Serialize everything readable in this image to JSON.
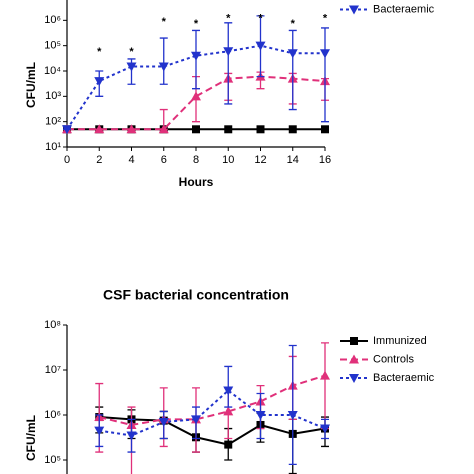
{
  "chart_data": [
    {
      "type": "line",
      "log_y": true,
      "xlabel": "Hours",
      "ylabel": "CFU/mL",
      "legend": "upper right",
      "x": [
        0,
        2,
        4,
        6,
        8,
        10,
        12,
        14,
        16
      ],
      "xlim": [
        0,
        16
      ],
      "xticks": [
        0,
        2,
        4,
        6,
        8,
        10,
        12,
        14,
        16
      ],
      "ylim": [
        10,
        10000000
      ],
      "yticks": [
        {
          "value": 10,
          "label": "10¹"
        },
        {
          "value": 100,
          "label": "10²"
        },
        {
          "value": 1000,
          "label": "10³"
        },
        {
          "value": 10000,
          "label": "10⁴"
        },
        {
          "value": 100000,
          "label": "10⁵"
        },
        {
          "value": 1000000,
          "label": "10⁶"
        }
      ],
      "series": [
        {
          "name": "Immunized",
          "color": "#000000",
          "marker": "square",
          "dash": "none",
          "legend": false,
          "values": [
            50,
            50,
            50,
            50,
            50,
            50,
            50,
            50,
            50
          ]
        },
        {
          "name": "Controls",
          "color": "#e0307a",
          "marker": "triangle-up",
          "dash": "7 4",
          "values": [
            50,
            50,
            50,
            50,
            1000,
            5000,
            6000,
            5000,
            4000
          ],
          "lower": [
            50,
            50,
            50,
            50,
            100,
            700,
            2000,
            500,
            700
          ],
          "upper": [
            50,
            50,
            50,
            300,
            6000,
            8000,
            9000,
            8000,
            5000
          ]
        },
        {
          "name": "Bacteraemic",
          "color": "#2233cc",
          "marker": "triangle-down",
          "dash": "3 3",
          "values": [
            50,
            4000,
            15000,
            15000,
            40000,
            60000,
            100000,
            50000,
            50000
          ],
          "lower": [
            50,
            1000,
            3000,
            3000,
            2000,
            500,
            6000,
            300,
            100
          ],
          "upper": [
            50,
            10000,
            30000,
            200000,
            400000,
            800000,
            1500000,
            400000,
            500000
          ]
        }
      ],
      "annotations": [
        {
          "text": "*",
          "x": 2,
          "y": 80000
        },
        {
          "text": "*",
          "x": 4,
          "y": 80000
        },
        {
          "text": "*",
          "x": 6,
          "y": 1200000
        },
        {
          "text": "*",
          "x": 8,
          "y": 1000000
        },
        {
          "text": "*",
          "x": 10,
          "y": 1700000
        },
        {
          "text": "*",
          "x": 12,
          "y": 1700000
        },
        {
          "text": "*",
          "x": 14,
          "y": 1000000
        },
        {
          "text": "*",
          "x": 16,
          "y": 1700000
        }
      ]
    },
    {
      "type": "line",
      "log_y": true,
      "title": "CSF bacterial concentration",
      "ylabel": "CFU/mL",
      "legend": "upper right",
      "x": [
        2,
        4,
        6,
        8,
        10,
        12,
        14,
        16
      ],
      "xlim": [
        0,
        16
      ],
      "ylim": [
        10000,
        100000000
      ],
      "yticks": [
        {
          "value": 100000,
          "label": "10⁵"
        },
        {
          "value": 1000000,
          "label": "10⁶"
        },
        {
          "value": 10000000,
          "label": "10⁷"
        },
        {
          "value": 100000000,
          "label": "10⁸"
        }
      ],
      "series": [
        {
          "name": "Immunized",
          "color": "#000000",
          "marker": "square",
          "dash": "none",
          "values": [
            900000,
            800000,
            750000,
            320000,
            220000,
            600000,
            380000,
            500000
          ],
          "lower": [
            400000,
            300000,
            300000,
            150000,
            100000,
            250000,
            50000,
            200000
          ],
          "upper": [
            1500000,
            1300000,
            1200000,
            700000,
            500000,
            1100000,
            800000,
            900000
          ]
        },
        {
          "name": "Controls",
          "color": "#e0307a",
          "marker": "triangle-up",
          "dash": "7 4",
          "values": [
            900000,
            600000,
            800000,
            800000,
            1200000,
            2000000,
            4500000,
            7500000
          ],
          "lower": [
            150000,
            40000,
            200000,
            150000,
            300000,
            500000,
            800000,
            500000
          ],
          "upper": [
            5000000,
            1500000,
            4000000,
            4000000,
            4000000,
            4500000,
            20000000,
            40000000
          ]
        },
        {
          "name": "Bacteraemic",
          "color": "#2233cc",
          "marker": "triangle-down",
          "dash": "3 3",
          "values": [
            450000,
            350000,
            700000,
            800000,
            3500000,
            1000000,
            1000000,
            500000
          ],
          "lower": [
            200000,
            150000,
            300000,
            300000,
            1500000,
            300000,
            80000,
            300000
          ],
          "upper": [
            1000000,
            800000,
            1200000,
            1500000,
            12000000,
            3000000,
            35000000,
            800000
          ]
        }
      ]
    }
  ]
}
